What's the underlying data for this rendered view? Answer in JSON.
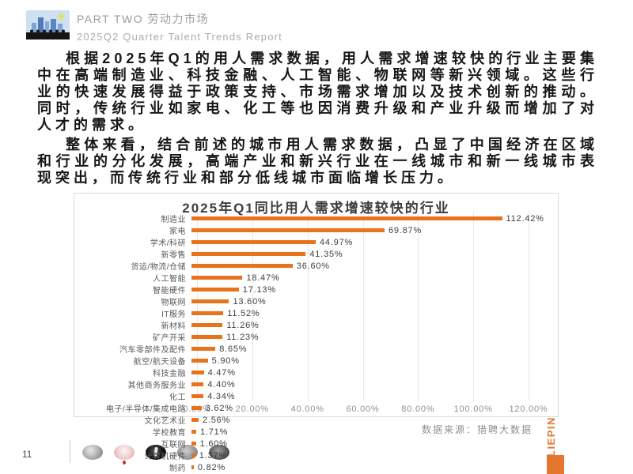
{
  "header": {
    "part_label": "PART TWO 劳动力市场",
    "report_label": "2025Q2 Quarter Talent Trends Report"
  },
  "paragraphs": {
    "p1": "根据2025年Q1的用人需求数据，用人需求增速较快的行业主要集中在高端制造业、科技金融、人工智能、物联网等新兴领域。这些行业的快速发展得益于政策支持、市场需求增加以及技术创新的推动。同时，传统行业如家电、化工等也因消费升级和产业升级而增加了对人才的需求。",
    "p2": "整体来看，结合前述的城市用人需求数据，凸显了中国经济在区域和行业的分化发展，高端产业和新兴行业在一线城市和新一线城市表现突出，而传统行业和部分低线城市面临增长压力。"
  },
  "chart_data": {
    "type": "bar",
    "orientation": "horizontal",
    "title": "2025年Q1同比用人需求增速较快的行业",
    "categories": [
      "制造业",
      "家电",
      "学术/科研",
      "新零售",
      "货运/物流/仓储",
      "人工智能",
      "智能硬件",
      "物联网",
      "IT服务",
      "新材料",
      "矿产开采",
      "汽车零部件及配件",
      "航空/航天设备",
      "科技金融",
      "其他商务服务业",
      "化工",
      "电子/半导体/集成电路",
      "文化艺术业",
      "学校教育",
      "互联网",
      "计算机硬件",
      "制药"
    ],
    "values": [
      112.42,
      69.87,
      44.97,
      41.35,
      36.6,
      18.47,
      17.13,
      13.6,
      11.52,
      11.26,
      11.23,
      8.65,
      5.9,
      4.47,
      4.4,
      4.34,
      3.62,
      2.56,
      1.71,
      1.6,
      1.37,
      0.82
    ],
    "value_labels": [
      "112.42%",
      "69.87%",
      "44.97%",
      "41.35%",
      "36.60%",
      "18.47%",
      "17.13%",
      "13.60%",
      "11.52%",
      "11.26%",
      "11.23%",
      "8.65%",
      "5.90%",
      "4.47%",
      "4.40%",
      "4.34%",
      "3.62%",
      "2.56%",
      "1.71%",
      "1.60%",
      "1.37%",
      "0.82%"
    ],
    "x_ticks": [
      "0.00%",
      "20.00%",
      "40.00%",
      "60.00%",
      "80.00%",
      "100.00%",
      "120.00%"
    ],
    "xlim": [
      0,
      120
    ],
    "grid": true,
    "legend_position": "none",
    "bar_color": "#E9731D"
  },
  "footer": {
    "source": "数据来源：猎聘大数据",
    "page_number": "11",
    "brand": "LIEPIN",
    "brand_color": "#E4762F",
    "thumbnails": [
      "coin-silver",
      "seal-red",
      "coin-black",
      "coin-gray",
      "coin-dark"
    ]
  }
}
